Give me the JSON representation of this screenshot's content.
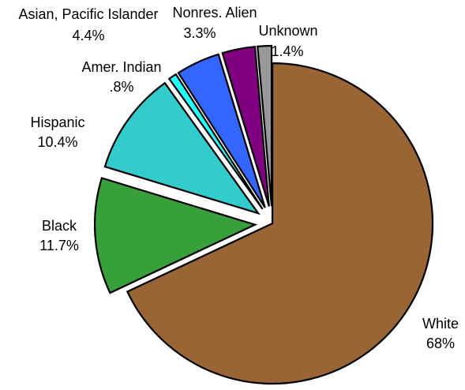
{
  "chart_data": {
    "type": "pie",
    "title": "",
    "slices": [
      {
        "label": "White",
        "value": 68,
        "display": "68%",
        "color": "#9a6535"
      },
      {
        "label": "Black",
        "value": 11.7,
        "display": "11.7%",
        "color": "#38a03a"
      },
      {
        "label": "Hispanic",
        "value": 10.4,
        "display": "10.4%",
        "color": "#33cccc"
      },
      {
        "label": "Amer. Indian",
        "value": 0.8,
        "display": ".8%",
        "color": "#22ffff"
      },
      {
        "label": "Asian, Pacific Islander",
        "value": 4.4,
        "display": "4.4%",
        "color": "#3366ff"
      },
      {
        "label": "Nonres. Alien",
        "value": 3.3,
        "display": "3.3%",
        "color": "#800080"
      },
      {
        "label": "Unknown",
        "value": 1.4,
        "display": "1.4%",
        "color": "#999999"
      }
    ],
    "exploded": [
      "Black",
      "Hispanic",
      "Amer. Indian",
      "Asian, Pacific Islander",
      "Nonres. Alien",
      "Unknown"
    ],
    "legend": "none"
  }
}
